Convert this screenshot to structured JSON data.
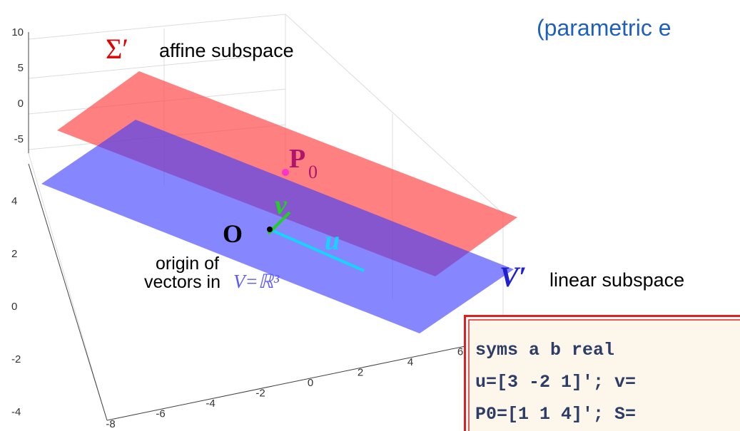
{
  "plot": {
    "z_ticks": [
      10,
      5,
      0,
      -5
    ],
    "y_ticks": [
      4,
      2,
      0,
      -2,
      -4
    ],
    "x_ticks": [
      -8,
      -6,
      -4,
      -2,
      0,
      2,
      4,
      6
    ]
  },
  "labels": {
    "sigma": "Σ′",
    "affine": "affine subspace",
    "p0_letter": "P",
    "p0_sub": "0",
    "v": "v",
    "u": "u",
    "origin_O": "O",
    "origin_line1": "origin of",
    "origin_line2": "vectors in",
    "space": "V=ℝ³",
    "vprime": "V′",
    "linear": "linear subspace",
    "parametric": "(parametric e"
  },
  "code": {
    "lines": [
      "syms a b real",
      "u=[3 -2 1]'; v=",
      "P0=[1 1 4]'; S="
    ]
  }
}
